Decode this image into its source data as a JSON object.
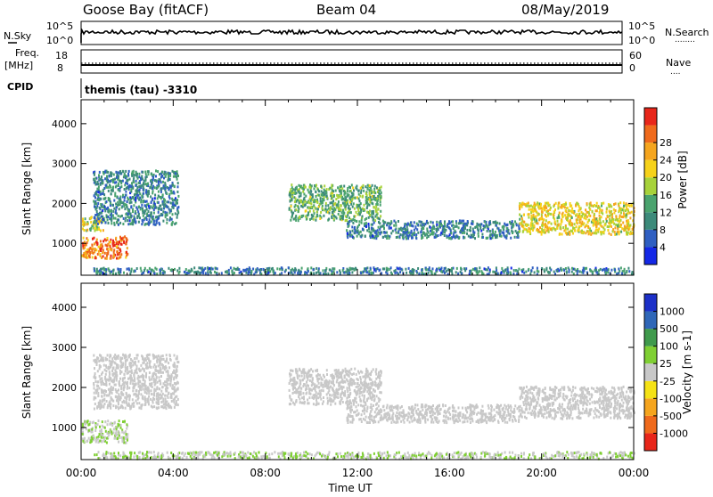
{
  "header": {
    "station": "Goose Bay (fitACF)",
    "beam": "Beam 04",
    "date": "08/May/2019"
  },
  "strip_nsky": {
    "left_label": "N.Sky",
    "left_ticks": [
      "10^5",
      "10^0"
    ],
    "right_ticks": [
      "10^5",
      "10^0"
    ],
    "right_label": "N.Search",
    "right_label_marker": "........"
  },
  "strip_freq": {
    "left_label_top": "Freq.",
    "left_label_unit": "[MHz]",
    "left_ticks": [
      "18",
      "8"
    ],
    "right_ticks": [
      "60",
      "0"
    ],
    "right_label": "Nave",
    "right_label_marker": "....",
    "cpid_label": "CPID"
  },
  "cpid_text": "themis (tau) -3310",
  "chart_data": [
    {
      "type": "heatmap",
      "quantity": "Power",
      "xlabel": "Time UT",
      "ylabel": "Slant Range [km]",
      "xlim": [
        0,
        24
      ],
      "ylim": [
        200,
        4600
      ],
      "yticks": [
        "1000",
        "2000",
        "3000",
        "4000"
      ],
      "xticks": [
        "00:00",
        "04:00",
        "08:00",
        "12:00",
        "16:00",
        "20:00",
        "00:00"
      ],
      "colorbar": {
        "label": "Power [dB]",
        "ticks": [
          "4",
          "8",
          "12",
          "16",
          "20",
          "24",
          "28"
        ],
        "range": [
          0,
          30
        ],
        "colors": [
          "#1428e6",
          "#2f5fc2",
          "#3c8a7a",
          "#4aa36e",
          "#a7d23a",
          "#f6d21a",
          "#f5a51e",
          "#ef6a1c",
          "#e8261a"
        ]
      },
      "echo_regions": [
        {
          "t0": 0.0,
          "t1": 2.0,
          "r0": 650,
          "r1": 1200,
          "level": 24
        },
        {
          "t0": 0.0,
          "t1": 1.0,
          "r0": 1350,
          "r1": 1700,
          "level": 16
        },
        {
          "t0": 0.5,
          "t1": 4.2,
          "r0": 1500,
          "r1": 2850,
          "level": 8
        },
        {
          "t0": 9.0,
          "t1": 13.0,
          "r0": 1600,
          "r1": 2500,
          "level": 12
        },
        {
          "t0": 11.5,
          "t1": 19.0,
          "r0": 1150,
          "r1": 1600,
          "level": 8
        },
        {
          "t0": 19.0,
          "t1": 24.0,
          "r0": 1250,
          "r1": 2050,
          "level": 18
        },
        {
          "t0": 0.5,
          "t1": 24.0,
          "r0": 250,
          "r1": 420,
          "level": 8
        }
      ]
    },
    {
      "type": "heatmap",
      "quantity": "Velocity",
      "xlabel": "Time UT",
      "ylabel": "Slant Range [km]",
      "xlim": [
        0,
        24
      ],
      "ylim": [
        200,
        4600
      ],
      "yticks": [
        "1000",
        "2000",
        "3000",
        "4000"
      ],
      "xticks": [
        "00:00",
        "04:00",
        "08:00",
        "12:00",
        "16:00",
        "20:00",
        "00:00"
      ],
      "colorbar": {
        "label": "Velocity [m s-1]",
        "ticks": [
          "1000",
          "500",
          "100",
          "25",
          "-25",
          "-100",
          "-500",
          "-1000"
        ],
        "range": [
          -1000,
          1000
        ],
        "colors": [
          "#1c30c8",
          "#2f67b8",
          "#3f9a4c",
          "#7fcf33",
          "#c8c8c8",
          "#f5e215",
          "#f5a51e",
          "#ef6a1c",
          "#e8261a"
        ]
      },
      "echo_regions": [
        {
          "t0": 0.0,
          "t1": 2.0,
          "r0": 650,
          "r1": 1200,
          "level": 100
        },
        {
          "t0": 0.5,
          "t1": 4.2,
          "r0": 1500,
          "r1": 2850,
          "level": 0
        },
        {
          "t0": 9.0,
          "t1": 13.0,
          "r0": 1600,
          "r1": 2500,
          "level": 0
        },
        {
          "t0": 11.5,
          "t1": 19.0,
          "r0": 1150,
          "r1": 1600,
          "level": 0
        },
        {
          "t0": 19.0,
          "t1": 24.0,
          "r0": 1250,
          "r1": 2050,
          "level": 0
        },
        {
          "t0": 0.5,
          "t1": 24.0,
          "r0": 250,
          "r1": 420,
          "level": 100
        }
      ]
    }
  ]
}
